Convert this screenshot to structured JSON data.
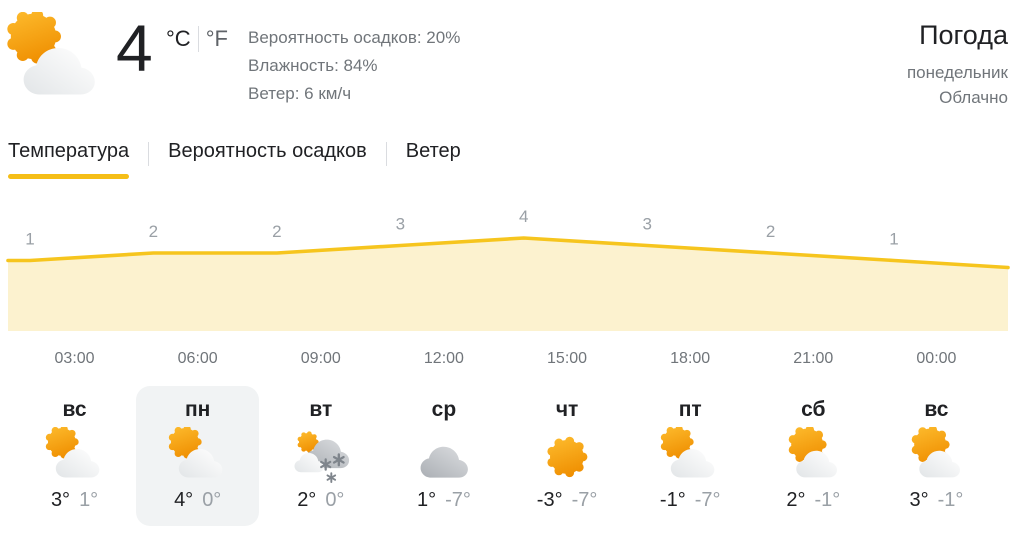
{
  "current": {
    "temp": "4",
    "unit_c": "°C",
    "unit_f": "°F",
    "selected_unit": "C",
    "icon": "sun-cloud",
    "details": {
      "precipitation": "Вероятность осадков: 20%",
      "humidity": "Влажность: 84%",
      "wind": "Ветер: 6 км/ч"
    }
  },
  "header_right": {
    "title": "Погода",
    "day": "понедельник",
    "condition": "Облачно"
  },
  "tabs": [
    {
      "label": "Температура",
      "active": true
    },
    {
      "label": "Вероятность осадков",
      "active": false
    },
    {
      "label": "Ветер",
      "active": false
    }
  ],
  "chart_data": {
    "type": "area",
    "title": "Температура",
    "unit": "°C",
    "x": [
      "03:00",
      "06:00",
      "09:00",
      "12:00",
      "15:00",
      "18:00",
      "21:00",
      "00:00"
    ],
    "values": [
      1,
      2,
      2,
      3,
      4,
      3,
      2,
      1
    ],
    "ylim": [
      0,
      5
    ],
    "grid": false,
    "legend": "none",
    "line_color": "#f6c51e",
    "fill_color": "#fcf2cf",
    "label_color": "#9aa0a6"
  },
  "times": [
    "03:00",
    "06:00",
    "09:00",
    "12:00",
    "15:00",
    "18:00",
    "21:00",
    "00:00"
  ],
  "days": [
    {
      "name": "вс",
      "icon": "sun-cloud",
      "high": "3°",
      "low": "1°",
      "selected": false
    },
    {
      "name": "пн",
      "icon": "sun-cloud",
      "high": "4°",
      "low": "0°",
      "selected": true
    },
    {
      "name": "вт",
      "icon": "snow",
      "high": "2°",
      "low": "0°",
      "selected": false
    },
    {
      "name": "ср",
      "icon": "cloud",
      "high": "1°",
      "low": "-7°",
      "selected": false
    },
    {
      "name": "чт",
      "icon": "sun",
      "high": "-3°",
      "low": "-7°",
      "selected": false
    },
    {
      "name": "пт",
      "icon": "sun-cloud",
      "high": "-1°",
      "low": "-7°",
      "selected": false
    },
    {
      "name": "сб",
      "icon": "sun-cloud-2",
      "high": "2°",
      "low": "-1°",
      "selected": false
    },
    {
      "name": "вс",
      "icon": "sun-cloud-2",
      "high": "3°",
      "low": "-1°",
      "selected": false
    }
  ]
}
